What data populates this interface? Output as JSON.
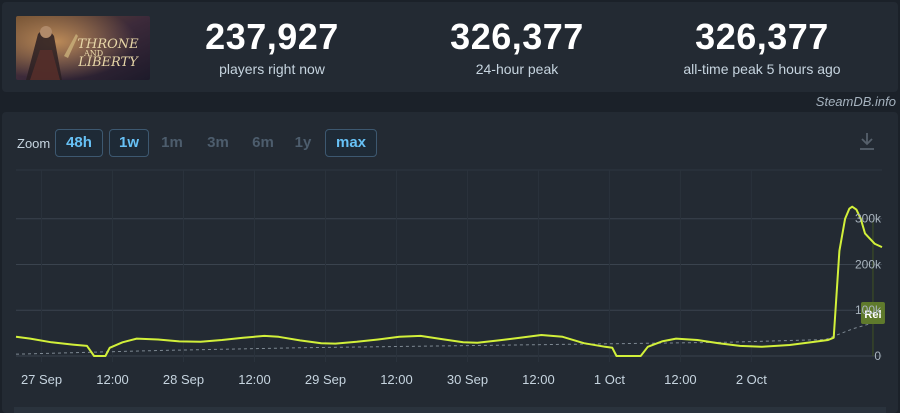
{
  "header": {
    "logo_text": "THRONE AND LIBERTY",
    "stats": [
      {
        "value": "237,927",
        "label": "players right now"
      },
      {
        "value": "326,377",
        "label": "24-hour peak"
      },
      {
        "value": "326,377",
        "label": "all-time peak 5 hours ago"
      }
    ],
    "credit": "SteamDB.info"
  },
  "toolbar": {
    "zoom_label": "Zoom",
    "zoom_options": [
      {
        "label": "48h",
        "active": true
      },
      {
        "label": "1w",
        "active": true
      },
      {
        "label": "1m",
        "active": false
      },
      {
        "label": "3m",
        "active": false
      },
      {
        "label": "6m",
        "active": false
      },
      {
        "label": "1y",
        "active": false
      },
      {
        "label": "max",
        "active": true
      }
    ],
    "download_icon": "download-icon"
  },
  "colors": {
    "background": "#1b2129",
    "panel": "#232a33",
    "line": "#d2f03a",
    "accent": "#67c1f5",
    "grid": "#3a434e",
    "release_marker": "#5f7a2c"
  },
  "chart_data": {
    "type": "line",
    "x_tick_labels": [
      "27 Sep",
      "12:00",
      "28 Sep",
      "12:00",
      "29 Sep",
      "12:00",
      "30 Sep",
      "12:00",
      "1 Oct",
      "12:00",
      "2 Oct"
    ],
    "y_tick_labels": [
      "0",
      "100k",
      "200k",
      "300k"
    ],
    "ylim": [
      0,
      330000
    ],
    "xlim_days": [
      0,
      6.1
    ],
    "grid": true,
    "annotations": [
      {
        "label": "Rel",
        "x_day": 5.98
      }
    ],
    "series": [
      {
        "points": [
          [
            0.0,
            42000
          ],
          [
            0.1,
            38000
          ],
          [
            0.25,
            30000
          ],
          [
            0.4,
            25000
          ],
          [
            0.5,
            22000
          ],
          [
            0.55,
            0
          ],
          [
            0.63,
            0
          ],
          [
            0.66,
            18000
          ],
          [
            0.75,
            30000
          ],
          [
            0.85,
            38000
          ],
          [
            1.0,
            36000
          ],
          [
            1.15,
            32000
          ],
          [
            1.3,
            31000
          ],
          [
            1.45,
            35000
          ],
          [
            1.6,
            40000
          ],
          [
            1.75,
            44000
          ],
          [
            1.85,
            42000
          ],
          [
            2.0,
            34000
          ],
          [
            2.15,
            28000
          ],
          [
            2.25,
            27000
          ],
          [
            2.4,
            31000
          ],
          [
            2.55,
            36000
          ],
          [
            2.7,
            42000
          ],
          [
            2.85,
            44000
          ],
          [
            3.0,
            37000
          ],
          [
            3.15,
            30000
          ],
          [
            3.25,
            29000
          ],
          [
            3.4,
            34000
          ],
          [
            3.55,
            40000
          ],
          [
            3.7,
            46000
          ],
          [
            3.85,
            42000
          ],
          [
            4.0,
            28000
          ],
          [
            4.15,
            20000
          ],
          [
            4.2,
            18000
          ],
          [
            4.23,
            0
          ],
          [
            4.4,
            0
          ],
          [
            4.45,
            20000
          ],
          [
            4.55,
            32000
          ],
          [
            4.65,
            38000
          ],
          [
            4.8,
            35000
          ],
          [
            4.95,
            28000
          ],
          [
            5.1,
            22000
          ],
          [
            5.25,
            20000
          ],
          [
            5.45,
            24000
          ],
          [
            5.6,
            30000
          ],
          [
            5.72,
            35000
          ],
          [
            5.76,
            40000
          ],
          [
            5.8,
            230000
          ],
          [
            5.84,
            300000
          ],
          [
            5.87,
            322000
          ],
          [
            5.89,
            326377
          ],
          [
            5.92,
            320000
          ],
          [
            5.95,
            300000
          ],
          [
            5.98,
            268000
          ],
          [
            6.01,
            258000
          ],
          [
            6.05,
            245000
          ],
          [
            6.1,
            237927
          ]
        ]
      },
      {
        "style": "dashed",
        "points": [
          [
            0.0,
            4000
          ],
          [
            1.0,
            12000
          ],
          [
            2.0,
            18000
          ],
          [
            3.0,
            22000
          ],
          [
            4.0,
            26000
          ],
          [
            5.0,
            30000
          ],
          [
            5.7,
            36000
          ],
          [
            5.9,
            60000
          ],
          [
            6.1,
            78000
          ]
        ]
      }
    ]
  }
}
